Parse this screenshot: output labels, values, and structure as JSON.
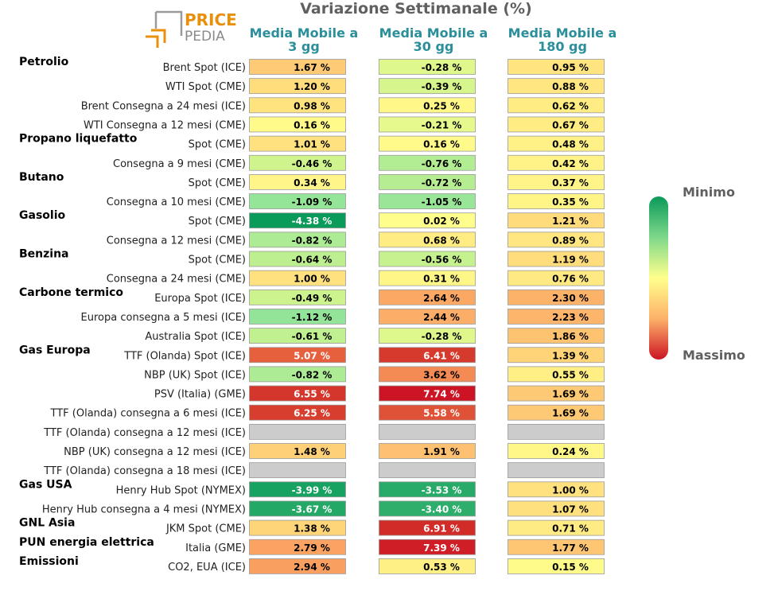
{
  "logo": {
    "word1": "PRICE",
    "word2": "PEDIA"
  },
  "chart_data": {
    "type": "table",
    "title": "Variazione Settimanale (%)",
    "columns": [
      "Media Mobile a 3 gg",
      "Media Mobile a 30 gg",
      "Media Mobile a 180 gg"
    ],
    "column_lines": [
      [
        "Media Mobile a",
        "3 gg"
      ],
      [
        "Media Mobile a",
        "30 gg"
      ],
      [
        "Media Mobile a",
        "180 gg"
      ]
    ],
    "color_scale": {
      "min": -4.38,
      "max": 7.74,
      "low_label": "Minimo",
      "high_label": "Massimo"
    },
    "colors": {
      "min": "#0a9a5a",
      "mid": "#ffff8c",
      "max": "#cc1424",
      "missing": "#cccccc"
    },
    "groups": [
      {
        "name": "Petrolio",
        "rows": [
          {
            "label": "Brent Spot (ICE)",
            "values": [
              1.67,
              -0.28,
              0.95
            ]
          },
          {
            "label": "WTI Spot (CME)",
            "values": [
              1.2,
              -0.39,
              0.88
            ]
          },
          {
            "label": "Brent Consegna a 24 mesi (ICE)",
            "values": [
              0.98,
              0.25,
              0.62
            ]
          },
          {
            "label": "WTI Consegna a 12 mesi (CME)",
            "values": [
              0.16,
              -0.21,
              0.67
            ]
          }
        ]
      },
      {
        "name": "Propano liquefatto",
        "rows": [
          {
            "label": "Spot (CME)",
            "values": [
              1.01,
              0.16,
              0.48
            ]
          },
          {
            "label": "Consegna a 9 mesi (CME)",
            "values": [
              -0.46,
              -0.76,
              0.42
            ]
          }
        ]
      },
      {
        "name": "Butano",
        "rows": [
          {
            "label": "Spot (CME)",
            "values": [
              0.34,
              -0.72,
              0.37
            ]
          },
          {
            "label": "Consegna a 10 mesi (CME)",
            "values": [
              -1.09,
              -1.05,
              0.35
            ]
          }
        ]
      },
      {
        "name": "Gasolio",
        "rows": [
          {
            "label": "Spot (CME)",
            "values": [
              -4.38,
              0.02,
              1.21
            ]
          },
          {
            "label": "Consegna a 12 mesi (CME)",
            "values": [
              -0.82,
              0.68,
              0.89
            ]
          }
        ]
      },
      {
        "name": "Benzina",
        "rows": [
          {
            "label": "Spot (CME)",
            "values": [
              -0.64,
              -0.56,
              1.19
            ]
          },
          {
            "label": "Consegna a 24 mesi (CME)",
            "values": [
              1.0,
              0.31,
              0.76
            ]
          }
        ]
      },
      {
        "name": "Carbone termico",
        "rows": [
          {
            "label": "Europa Spot (ICE)",
            "values": [
              -0.49,
              2.64,
              2.3
            ]
          },
          {
            "label": "Europa consegna a 5 mesi (ICE)",
            "values": [
              -1.12,
              2.44,
              2.23
            ]
          },
          {
            "label": "Australia Spot (ICE)",
            "values": [
              -0.61,
              -0.28,
              1.86
            ]
          }
        ]
      },
      {
        "name": "Gas Europa",
        "rows": [
          {
            "label": "TTF (Olanda) Spot (ICE)",
            "values": [
              5.07,
              6.41,
              1.39
            ]
          },
          {
            "label": "NBP (UK) Spot (ICE)",
            "values": [
              -0.82,
              3.62,
              0.55
            ]
          },
          {
            "label": "PSV (Italia) (GME)",
            "values": [
              6.55,
              7.74,
              1.69
            ]
          },
          {
            "label": "TTF (Olanda) consegna a 6 mesi (ICE)",
            "values": [
              6.25,
              5.58,
              1.69
            ]
          },
          {
            "label": "TTF (Olanda) consegna a 12 mesi (ICE)",
            "values": [
              null,
              null,
              null
            ]
          },
          {
            "label": "NBP (UK) consegna a 12 mesi (ICE)",
            "values": [
              1.48,
              1.91,
              0.24
            ]
          },
          {
            "label": "TTF (Olanda) consegna a 18 mesi (ICE)",
            "values": [
              null,
              null,
              null
            ]
          }
        ]
      },
      {
        "name": "Gas USA",
        "rows": [
          {
            "label": "Henry Hub Spot (NYMEX)",
            "values": [
              -3.99,
              -3.53,
              1.0
            ]
          },
          {
            "label": "Henry Hub consegna a 4 mesi (NYMEX)",
            "values": [
              -3.67,
              -3.4,
              1.07
            ]
          }
        ]
      },
      {
        "name": "GNL Asia",
        "rows": [
          {
            "label": "JKM Spot (CME)",
            "values": [
              1.38,
              6.91,
              0.71
            ]
          }
        ]
      },
      {
        "name": "PUN energia elettrica",
        "rows": [
          {
            "label": "Italia (GME)",
            "values": [
              2.79,
              7.39,
              1.77
            ]
          }
        ]
      },
      {
        "name": "Emissioni",
        "rows": [
          {
            "label": "CO2, EUA (ICE)",
            "values": [
              2.94,
              0.53,
              0.15
            ]
          }
        ]
      }
    ]
  }
}
